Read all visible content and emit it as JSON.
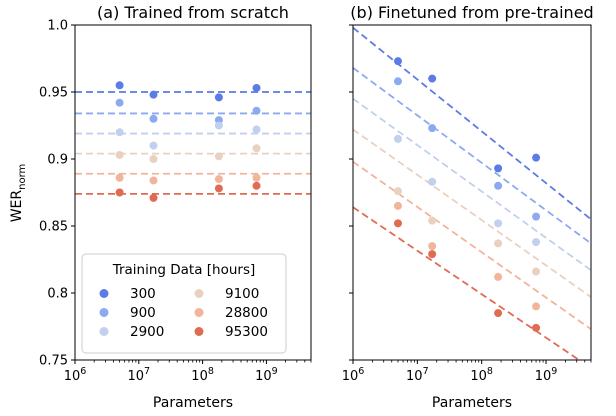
{
  "chart_data": [
    {
      "type": "scatter",
      "title": "(a) Trained from scratch",
      "xlabel": "Parameters",
      "ylabel": "WER",
      "ylabel_sub": "norm",
      "xscale": "log",
      "xlim": [
        1000000,
        5000000000
      ],
      "ylim": [
        0.75,
        1.0
      ],
      "x_ticks": [
        "10",
        "10",
        "10",
        "10"
      ],
      "x_tick_exponents": [
        "6",
        "7",
        "8",
        "9"
      ],
      "y_ticks": [
        "0.75",
        "0.8",
        "0.85",
        "0.9",
        "0.95",
        "1.0"
      ],
      "fit": "horizontal dashed lines",
      "legend": {
        "title": "Training Data [hours]",
        "placement": "lower-center"
      },
      "series": [
        {
          "name": "300",
          "color": "#5b7be6",
          "x": [
            5000000,
            17000000,
            180000000,
            700000000
          ],
          "y": [
            0.955,
            0.948,
            0.946,
            0.953
          ],
          "fit_y": 0.95
        },
        {
          "name": "900",
          "color": "#8daaf0",
          "x": [
            5000000,
            17000000,
            180000000,
            700000000
          ],
          "y": [
            0.942,
            0.93,
            0.929,
            0.936
          ],
          "fit_y": 0.934
        },
        {
          "name": "2900",
          "color": "#c0d0ee",
          "x": [
            5000000,
            17000000,
            180000000,
            700000000
          ],
          "y": [
            0.92,
            0.91,
            0.925,
            0.922
          ],
          "fit_y": 0.919
        },
        {
          "name": "9100",
          "color": "#ead0c0",
          "x": [
            5000000,
            17000000,
            180000000,
            700000000
          ],
          "y": [
            0.903,
            0.9,
            0.902,
            0.908
          ],
          "fit_y": 0.904
        },
        {
          "name": "28800",
          "color": "#f2b49a",
          "x": [
            5000000,
            17000000,
            180000000,
            700000000
          ],
          "y": [
            0.886,
            0.884,
            0.885,
            0.886
          ],
          "fit_y": 0.889
        },
        {
          "name": "95300",
          "color": "#df6c52",
          "x": [
            5000000,
            17000000,
            180000000,
            700000000
          ],
          "y": [
            0.875,
            0.871,
            0.878,
            0.88
          ],
          "fit_y": 0.874
        }
      ]
    },
    {
      "type": "scatter",
      "title": "(b) Finetuned from pre-trained",
      "xlabel": "Parameters",
      "ylabel": "",
      "xscale": "log",
      "xlim": [
        1000000,
        5000000000
      ],
      "ylim": [
        0.75,
        1.0
      ],
      "x_ticks": [
        "10",
        "10",
        "10",
        "10"
      ],
      "x_tick_exponents": [
        "6",
        "7",
        "8",
        "9"
      ],
      "fit": "dashed power-law lines",
      "series": [
        {
          "name": "300",
          "color": "#5b7be6",
          "x": [
            5000000,
            17000000,
            180000000,
            700000000
          ],
          "y": [
            0.973,
            0.96,
            0.893,
            0.901
          ],
          "fit": {
            "x": [
              1000000,
              5000000000
            ],
            "y": [
              0.998,
              0.855
            ]
          }
        },
        {
          "name": "900",
          "color": "#8daaf0",
          "x": [
            5000000,
            17000000,
            180000000,
            700000000
          ],
          "y": [
            0.958,
            0.923,
            0.88,
            0.857
          ],
          "fit": {
            "x": [
              1000000,
              5000000000
            ],
            "y": [
              0.968,
              0.837
            ]
          }
        },
        {
          "name": "2900",
          "color": "#c0d0ee",
          "x": [
            5000000,
            17000000,
            180000000,
            700000000
          ],
          "y": [
            0.915,
            0.883,
            0.852,
            0.838
          ],
          "fit": {
            "x": [
              1000000,
              5000000000
            ],
            "y": [
              0.945,
              0.817
            ]
          }
        },
        {
          "name": "9100",
          "color": "#ead0c0",
          "x": [
            5000000,
            17000000,
            180000000,
            700000000
          ],
          "y": [
            0.876,
            0.854,
            0.837,
            0.816
          ],
          "fit": {
            "x": [
              1000000,
              5000000000
            ],
            "y": [
              0.922,
              0.797
            ]
          }
        },
        {
          "name": "28800",
          "color": "#f2b49a",
          "x": [
            5000000,
            17000000,
            180000000,
            700000000
          ],
          "y": [
            0.865,
            0.835,
            0.812,
            0.79
          ],
          "fit": {
            "x": [
              1000000,
              5000000000
            ],
            "y": [
              0.898,
              0.773
            ]
          }
        },
        {
          "name": "95300",
          "color": "#df6c52",
          "x": [
            5000000,
            17000000,
            180000000,
            700000000
          ],
          "y": [
            0.852,
            0.829,
            0.785,
            0.774
          ],
          "fit": {
            "x": [
              1000000,
              5000000000
            ],
            "y": [
              0.864,
              0.744
            ]
          }
        }
      ]
    }
  ]
}
